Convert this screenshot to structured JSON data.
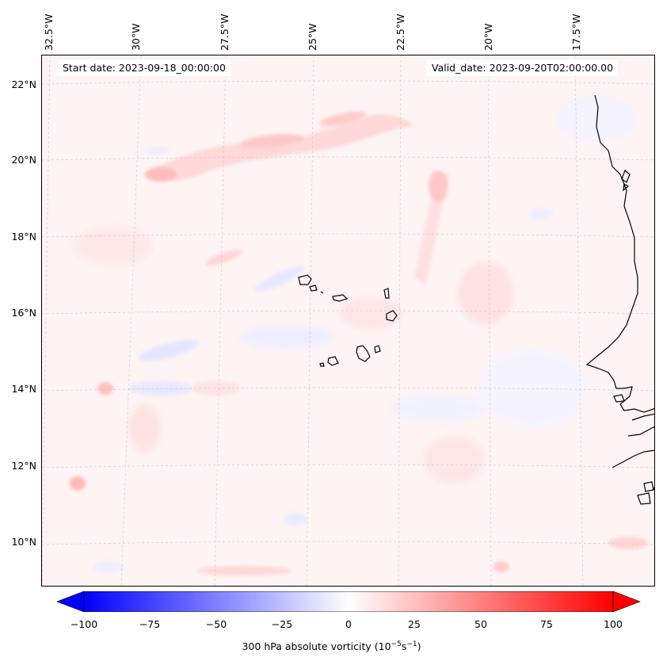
{
  "chart_data": {
    "type": "heatmap",
    "title": "",
    "start_label": "Start date: 2023-09-18_00:00:00",
    "valid_label": "Valid_date: 2023-09-20T02:00:00.00",
    "longitude_labels": [
      "32.5°W",
      "30°W",
      "27.5°W",
      "25°W",
      "22.5°W",
      "20°W",
      "17.5°W"
    ],
    "latitude_labels": [
      "22°N",
      "20°N",
      "18°N",
      "16°N",
      "14°N",
      "12°N",
      "10°N"
    ],
    "colorbar": {
      "label_prefix": "300 hPa absolute vorticity (10",
      "label_exp1": "−5",
      "label_mid": "s",
      "label_exp2": "−1",
      "label_suffix": ")",
      "min": -100,
      "max": 100,
      "extend": "both",
      "ticks": [
        "−100",
        "−75",
        "−50",
        "−25",
        "0",
        "25",
        "50",
        "75",
        "100"
      ],
      "colormap": "bwr",
      "colors": {
        "low": "#0000ff",
        "mid": "#ffffff",
        "high": "#ff0000"
      }
    },
    "field_description_values": {
      "background_range": [
        -10,
        10
      ],
      "max_positive_features": 40,
      "min_negative_features": -25
    },
    "gridlines": true,
    "coastline": true
  }
}
